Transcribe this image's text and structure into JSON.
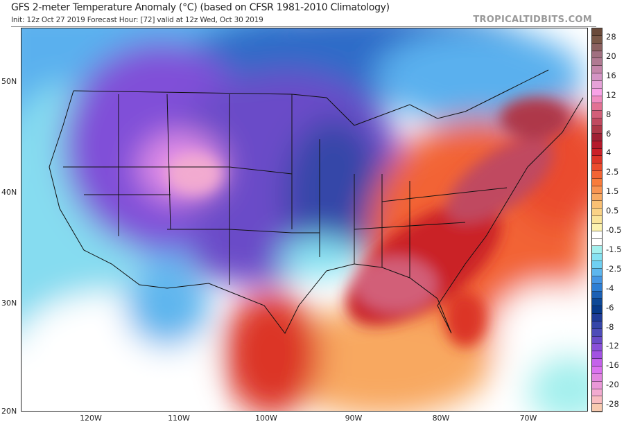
{
  "header": {
    "title": "GFS 2-meter Temperature Anomaly (°C) (based on CFSR 1981-2010 Climatology)",
    "subtitle": "Init: 12z Oct 27 2019   Forecast Hour: [72]   valid at 12z Wed, Oct 30 2019",
    "brand": "TROPICALTIDBITS.COM"
  },
  "axes": {
    "lat_labels": [
      "50N",
      "40N",
      "30N",
      "20N"
    ],
    "lon_labels": [
      "120W",
      "110W",
      "100W",
      "90W",
      "80W",
      "70W"
    ]
  },
  "colorbar": {
    "labels": [
      "28",
      "20",
      "16",
      "12",
      "8",
      "6",
      "4",
      "2.5",
      "1.5",
      "0.5",
      "-0.5",
      "-1.5",
      "-2.5",
      "-4",
      "-6",
      "-8",
      "-12",
      "-16",
      "-20",
      "-28"
    ],
    "colors": [
      "#6a4a3a",
      "#7a5848",
      "#8c6262",
      "#a07080",
      "#b07a92",
      "#c486aa",
      "#d494c4",
      "#e6a2d8",
      "#f8a2e6",
      "#f08cc0",
      "#e27294",
      "#d25e78",
      "#c04a60",
      "#ae3848",
      "#a02034",
      "#b41a2c",
      "#ca2028",
      "#dc3428",
      "#ea4c2e",
      "#f26434",
      "#f87c3c",
      "#f89452",
      "#f8aa64",
      "#fac074",
      "#fad286",
      "#fae49a",
      "#fcf2b0",
      "#ffffff",
      "#ffffff",
      "#a4f0ee",
      "#86e2f2",
      "#70d0f2",
      "#5eb6ee",
      "#4696e4",
      "#2e7ed4",
      "#1c60b4",
      "#0e4896",
      "#083a8a",
      "#203c98",
      "#3646a8",
      "#4e4cb8",
      "#6a4cc8",
      "#8a50d8",
      "#a252e2",
      "#c462ea",
      "#da72ee",
      "#e286e0",
      "#ea98d8",
      "#f2aad0",
      "#f8bcc0",
      "#f8cab0"
    ]
  }
}
